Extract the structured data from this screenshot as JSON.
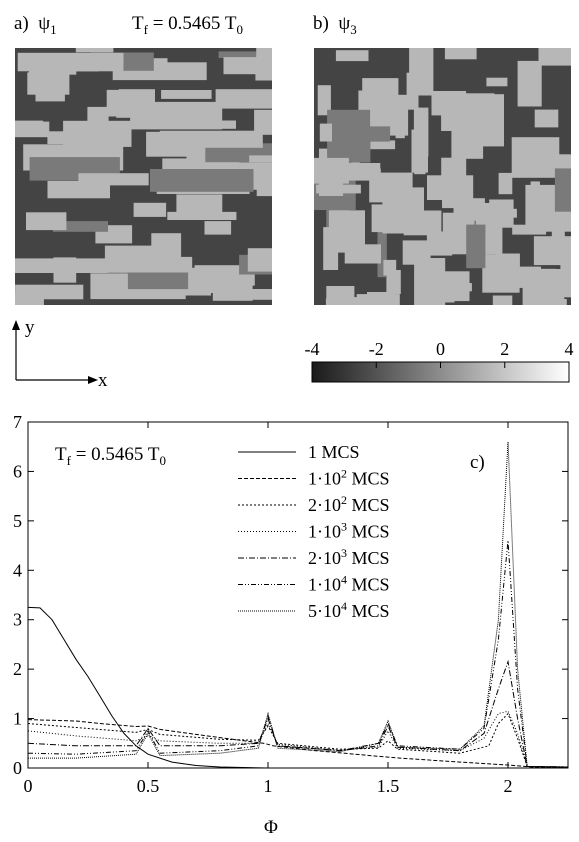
{
  "panel_a": {
    "letter": "a)",
    "symbol": "ψ",
    "subscript": "1"
  },
  "panel_b": {
    "letter": "b)",
    "symbol": "ψ",
    "subscript": "3"
  },
  "top_temp": {
    "prefix": "T",
    "sub": "f",
    "mid": " = 0.5465 T",
    "sub2": "0"
  },
  "axes_icon": {
    "y_label": "y",
    "x_label": "x"
  },
  "colorbar": {
    "min": -4,
    "max": 4,
    "ticks": [
      "-4",
      "-2",
      "0",
      "2",
      "4"
    ],
    "colors": {
      "low": "#1a1a1a",
      "high": "#ffffff"
    }
  },
  "panel_c_label": "c)",
  "plot_temp": {
    "prefix": "T",
    "sub": "f",
    "mid": " = 0.5465 T",
    "sub2": "0"
  },
  "chart_data": {
    "type": "line",
    "xlabel": "Φ",
    "ylabel": "",
    "xlim": [
      0,
      2.25
    ],
    "ylim": [
      0,
      7
    ],
    "x_ticks": [
      "0",
      "0.5",
      "1",
      "1.5",
      "2"
    ],
    "y_ticks": [
      "0",
      "1",
      "2",
      "3",
      "4",
      "5",
      "6",
      "7"
    ],
    "legend_position": "top-center",
    "series": [
      {
        "name": "1 MCS",
        "name_parts": [
          "1 MCS"
        ],
        "dash": "",
        "x": [
          0,
          0.05,
          0.1,
          0.15,
          0.2,
          0.25,
          0.3,
          0.35,
          0.4,
          0.45,
          0.5,
          0.6,
          0.7,
          0.8,
          1.0,
          2.0,
          2.25
        ],
        "y": [
          3.25,
          3.24,
          3.0,
          2.6,
          2.2,
          1.85,
          1.45,
          1.05,
          0.7,
          0.45,
          0.28,
          0.12,
          0.05,
          0.02,
          0.0,
          0.0,
          0.0
        ]
      },
      {
        "name": "1·10^2 MCS",
        "name_parts": [
          "1·10",
          "2",
          " MCS"
        ],
        "dash": "4,2",
        "x": [
          0,
          0.2,
          0.3,
          0.45,
          0.5,
          0.55,
          0.7,
          0.9,
          0.98,
          1.0,
          1.02,
          1.2,
          1.45,
          1.5,
          1.55,
          1.8,
          2.0,
          2.05,
          2.1,
          2.25
        ],
        "y": [
          0.98,
          0.95,
          0.9,
          0.84,
          0.85,
          0.78,
          0.68,
          0.55,
          0.5,
          0.48,
          0.45,
          0.35,
          0.24,
          0.22,
          0.2,
          0.12,
          0.06,
          0.04,
          0.02,
          0.02
        ]
      },
      {
        "name": "2·10^2 MCS",
        "name_parts": [
          "2·10",
          "2",
          " MCS"
        ],
        "dash": "2,2",
        "x": [
          0,
          0.2,
          0.45,
          0.5,
          0.55,
          0.8,
          0.96,
          1.0,
          1.04,
          1.3,
          1.46,
          1.5,
          1.54,
          1.8,
          1.92,
          1.96,
          2.0,
          2.04,
          2.08,
          2.25
        ],
        "y": [
          0.9,
          0.82,
          0.72,
          0.78,
          0.68,
          0.58,
          0.56,
          0.85,
          0.5,
          0.38,
          0.4,
          0.55,
          0.38,
          0.3,
          0.45,
          0.9,
          1.1,
          0.6,
          0.03,
          0.02
        ]
      },
      {
        "name": "1·10^3 MCS",
        "name_parts": [
          "1·10",
          "3",
          " MCS"
        ],
        "dash": "1,2",
        "x": [
          0,
          0.2,
          0.45,
          0.5,
          0.55,
          0.8,
          0.96,
          1.0,
          1.04,
          1.3,
          1.46,
          1.5,
          1.54,
          1.8,
          1.9,
          1.96,
          2.0,
          2.04,
          2.08,
          2.25
        ],
        "y": [
          0.75,
          0.65,
          0.55,
          0.65,
          0.55,
          0.5,
          0.5,
          0.9,
          0.48,
          0.36,
          0.42,
          0.75,
          0.4,
          0.35,
          0.6,
          1.1,
          1.15,
          0.7,
          0.03,
          0.02
        ]
      },
      {
        "name": "2·10^3 MCS",
        "name_parts": [
          "2·10",
          "3",
          " MCS"
        ],
        "dash": "6,2,1,2",
        "x": [
          0,
          0.2,
          0.45,
          0.5,
          0.55,
          0.8,
          0.96,
          1.0,
          1.04,
          1.3,
          1.46,
          1.5,
          1.54,
          1.8,
          1.9,
          1.96,
          2.0,
          2.04,
          2.08,
          2.25
        ],
        "y": [
          0.5,
          0.45,
          0.45,
          0.8,
          0.45,
          0.45,
          0.5,
          1.0,
          0.45,
          0.35,
          0.45,
          0.85,
          0.42,
          0.35,
          0.7,
          1.6,
          2.15,
          1.0,
          0.03,
          0.02
        ]
      },
      {
        "name": "1·10^4 MCS",
        "name_parts": [
          "1·10",
          "4",
          " MCS"
        ],
        "dash": "5,2,1,2,1,2",
        "x": [
          0,
          0.2,
          0.45,
          0.5,
          0.55,
          0.8,
          0.96,
          1.0,
          1.04,
          1.3,
          1.46,
          1.5,
          1.54,
          1.8,
          1.9,
          1.96,
          2.0,
          2.04,
          2.08,
          2.25
        ],
        "y": [
          0.3,
          0.28,
          0.35,
          0.75,
          0.3,
          0.35,
          0.45,
          1.05,
          0.45,
          0.35,
          0.5,
          0.9,
          0.45,
          0.38,
          0.8,
          2.6,
          4.6,
          1.6,
          0.03,
          0.02
        ]
      },
      {
        "name": "5·10^4 MCS",
        "name_parts": [
          "5·10",
          "4",
          " MCS"
        ],
        "dash": "1,1",
        "x": [
          0,
          0.2,
          0.45,
          0.5,
          0.55,
          0.8,
          0.96,
          1.0,
          1.04,
          1.3,
          1.46,
          1.5,
          1.54,
          1.8,
          1.9,
          1.96,
          2.0,
          2.04,
          2.08,
          2.25
        ],
        "y": [
          0.2,
          0.2,
          0.28,
          0.7,
          0.25,
          0.3,
          0.4,
          1.1,
          0.4,
          0.33,
          0.5,
          0.95,
          0.42,
          0.38,
          0.85,
          3.0,
          6.6,
          2.0,
          0.03,
          0.02
        ]
      }
    ]
  }
}
